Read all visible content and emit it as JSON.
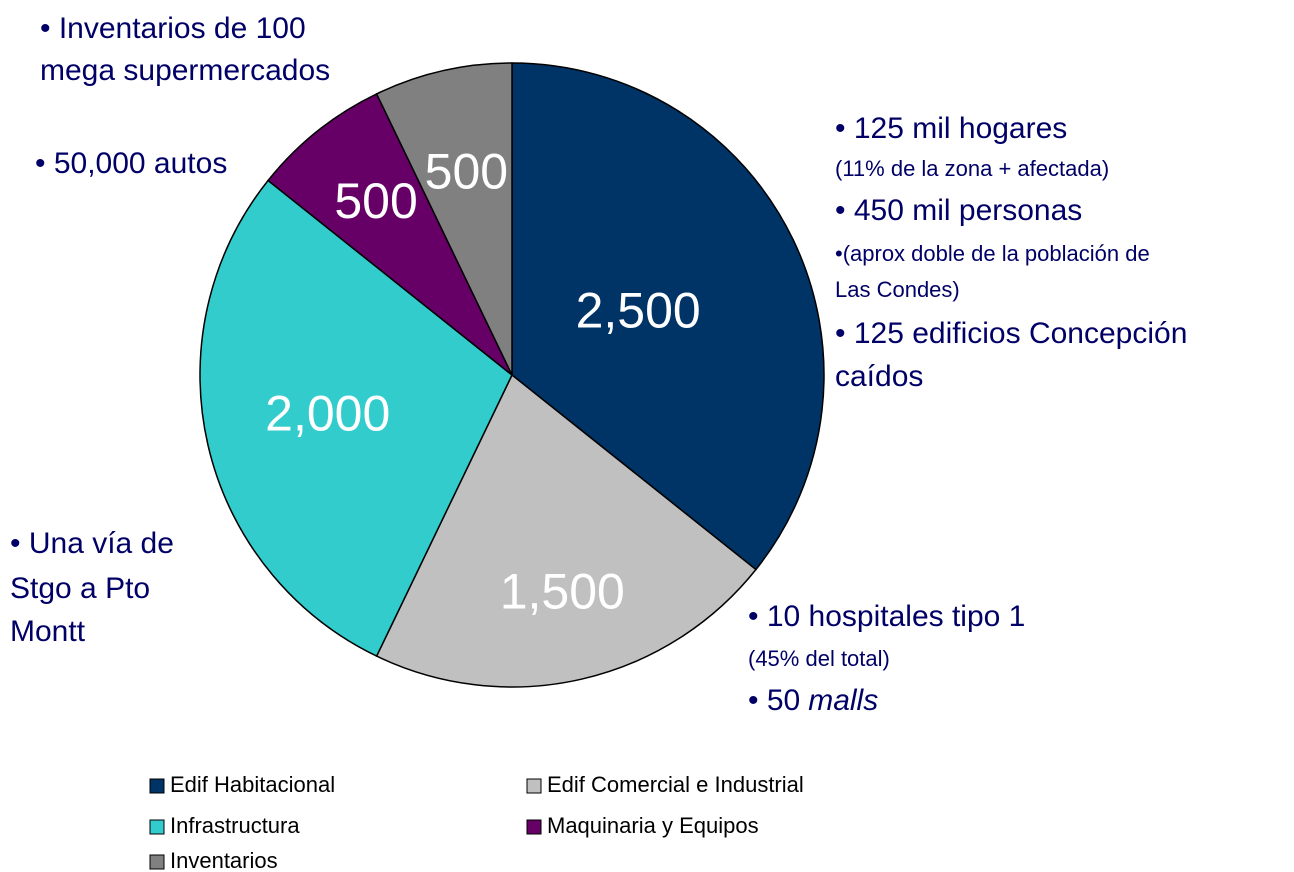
{
  "chart_data": {
    "type": "pie",
    "categories": [
      "Edif Habitacional",
      "Edif Comercial e Industrial",
      "Infrastructura",
      "Maquinaria y Equipos",
      "Inventarios"
    ],
    "values": [
      2500,
      1500,
      2000,
      500,
      500
    ],
    "value_labels": [
      "2,500",
      "1,500",
      "2,000",
      "500",
      "500"
    ],
    "colors": [
      "#003366",
      "#c0c0c0",
      "#33cccc",
      "#660066",
      "#808080"
    ],
    "annotations": [
      [
        "• Inventarios de 100",
        "mega supermercados"
      ],
      [
        "• 50,000 autos"
      ],
      [
        "• 125 mil hogares",
        "(11% de la zona + afectada)",
        "• 450 mil personas",
        "•(aprox doble de la población de",
        "Las Condes)",
        "• 125 edificios Concepción",
        "caídos"
      ],
      [
        "• 10 hospitales tipo 1",
        "(45% del total)",
        {
          "text": "• 50",
          "emphasis": "malls"
        }
      ],
      [
        "• Una vía de",
        "Stgo a Pto",
        "Montt"
      ]
    ]
  }
}
